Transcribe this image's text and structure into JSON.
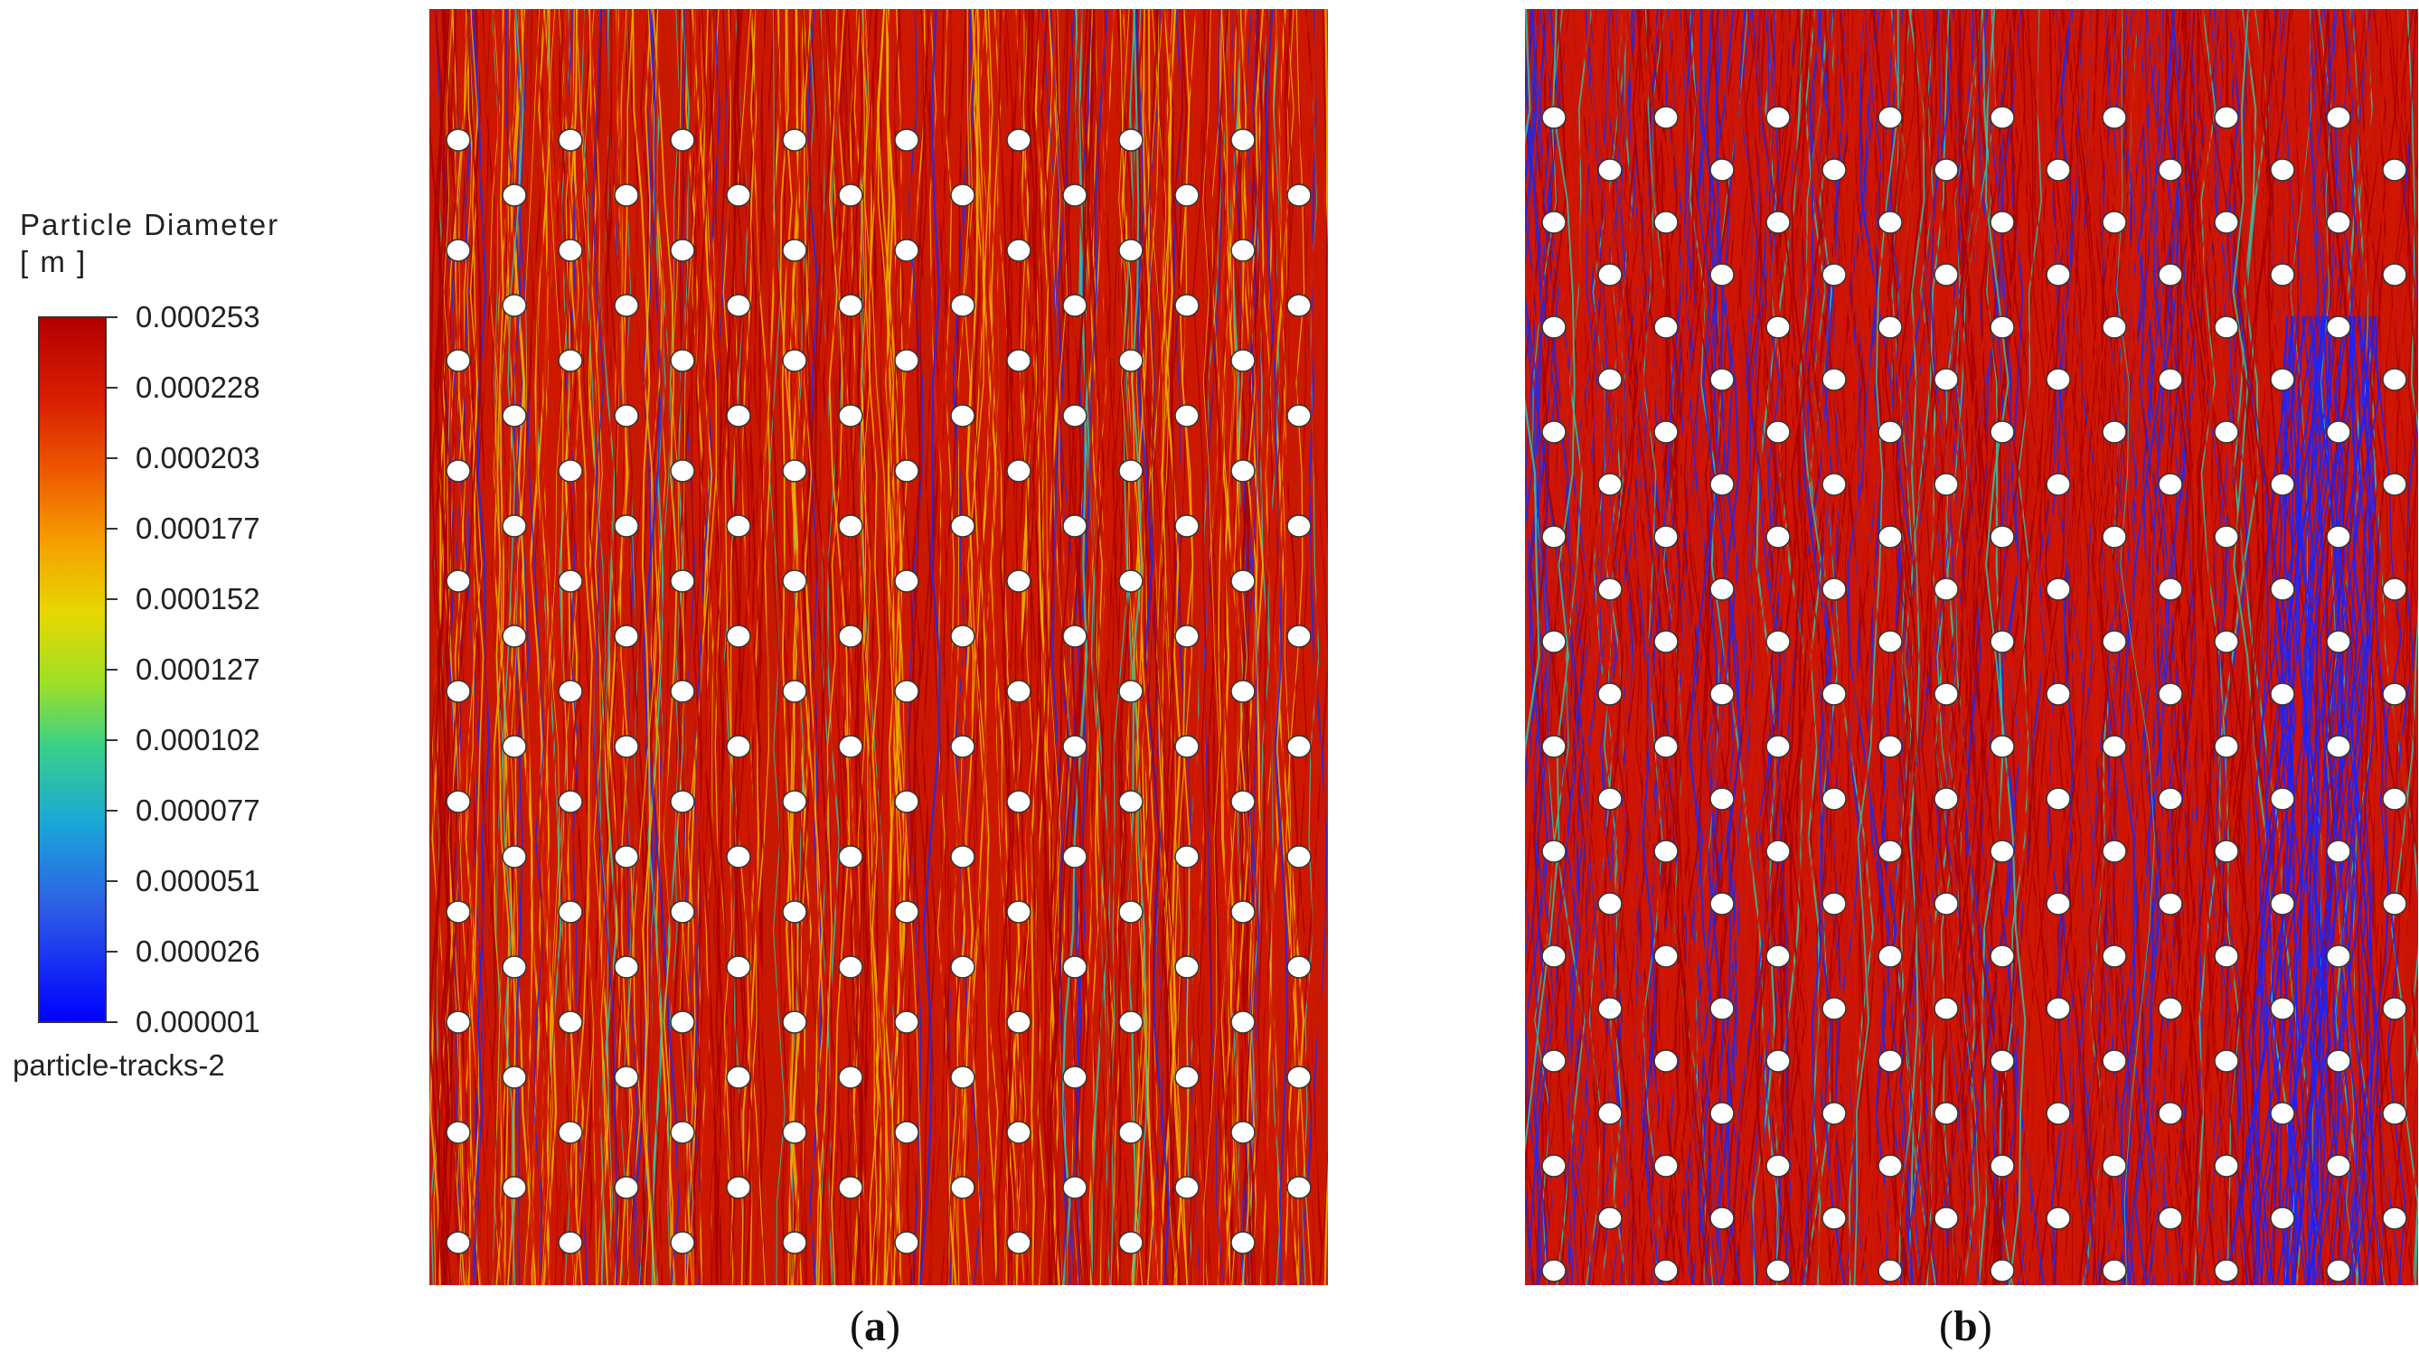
{
  "legend": {
    "title_line1": "Particle Diameter",
    "title_line2": "[ m ]",
    "ticks": [
      "0.000253",
      "0.000228",
      "0.000203",
      "0.000177",
      "0.000152",
      "0.000127",
      "0.000102",
      "0.000077",
      "0.000051",
      "0.000026",
      "0.000001"
    ],
    "caption": "particle-tracks-2",
    "colors": {
      "max": "#b30000",
      "mid": "#e6d800",
      "min": "#0000ff"
    }
  },
  "panels": [
    {
      "label": "a",
      "background": "#c51a00"
    },
    {
      "label": "b",
      "background": "#c8130a"
    }
  ]
}
